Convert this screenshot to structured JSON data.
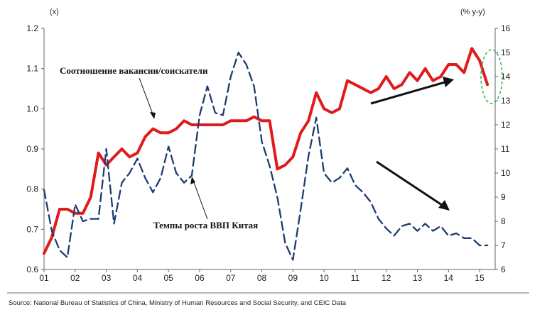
{
  "chart_data": {
    "type": "line",
    "left_axis_unit": "(x)",
    "right_axis_unit": "(% y-y)",
    "y_left_range": [
      0.6,
      1.2
    ],
    "y_left_ticks": [
      "0.6",
      "0.7",
      "0.8",
      "0.9",
      "1.0",
      "1.1",
      "1.2"
    ],
    "y_right_range": [
      6,
      16
    ],
    "y_right_ticks": [
      "6",
      "7",
      "8",
      "9",
      "10",
      "11",
      "12",
      "13",
      "14",
      "15",
      "16"
    ],
    "x_range": [
      2001,
      2015.5
    ],
    "x_ticks": [
      "01",
      "02",
      "03",
      "04",
      "05",
      "06",
      "07",
      "08",
      "09",
      "10",
      "11",
      "12",
      "13",
      "14",
      "15"
    ],
    "grid": false,
    "series": [
      {
        "name": "Соотношение вакансии/соискатели",
        "axis": "left",
        "color": "#e01b1b",
        "style": "solid",
        "x": [
          2001.0,
          2001.25,
          2001.5,
          2001.75,
          2002.0,
          2002.25,
          2002.5,
          2002.75,
          2003.0,
          2003.25,
          2003.5,
          2003.75,
          2004.0,
          2004.25,
          2004.5,
          2004.75,
          2005.0,
          2005.25,
          2005.5,
          2005.75,
          2006.0,
          2006.25,
          2006.5,
          2006.75,
          2007.0,
          2007.25,
          2007.5,
          2007.75,
          2008.0,
          2008.25,
          2008.5,
          2008.75,
          2009.0,
          2009.25,
          2009.5,
          2009.75,
          2010.0,
          2010.25,
          2010.5,
          2010.75,
          2011.0,
          2011.25,
          2011.5,
          2011.75,
          2012.0,
          2012.25,
          2012.5,
          2012.75,
          2013.0,
          2013.25,
          2013.5,
          2013.75,
          2014.0,
          2014.25,
          2014.5,
          2014.75,
          2015.0,
          2015.25
        ],
        "values": [
          0.64,
          0.68,
          0.75,
          0.75,
          0.74,
          0.74,
          0.78,
          0.89,
          0.86,
          0.88,
          0.9,
          0.88,
          0.89,
          0.93,
          0.95,
          0.94,
          0.94,
          0.95,
          0.97,
          0.96,
          0.96,
          0.96,
          0.96,
          0.96,
          0.97,
          0.97,
          0.97,
          0.98,
          0.97,
          0.97,
          0.85,
          0.86,
          0.88,
          0.94,
          0.97,
          1.04,
          1.0,
          0.99,
          1.0,
          1.07,
          1.06,
          1.05,
          1.04,
          1.05,
          1.08,
          1.05,
          1.06,
          1.09,
          1.07,
          1.1,
          1.07,
          1.08,
          1.11,
          1.11,
          1.09,
          1.15,
          1.12,
          1.06
        ]
      },
      {
        "name": "Темпы роста ВВП Китая",
        "axis": "right",
        "color": "#1f3b73",
        "style": "dashed",
        "x": [
          2001.0,
          2001.25,
          2001.5,
          2001.75,
          2002.0,
          2002.25,
          2002.5,
          2002.75,
          2003.0,
          2003.25,
          2003.5,
          2003.75,
          2004.0,
          2004.25,
          2004.5,
          2004.75,
          2005.0,
          2005.25,
          2005.5,
          2005.75,
          2006.0,
          2006.25,
          2006.5,
          2006.75,
          2007.0,
          2007.25,
          2007.5,
          2007.75,
          2008.0,
          2008.25,
          2008.5,
          2008.75,
          2009.0,
          2009.25,
          2009.5,
          2009.75,
          2010.0,
          2010.25,
          2010.5,
          2010.75,
          2011.0,
          2011.25,
          2011.5,
          2011.75,
          2012.0,
          2012.25,
          2012.5,
          2012.75,
          2013.0,
          2013.25,
          2013.5,
          2013.75,
          2014.0,
          2014.25,
          2014.5,
          2014.75,
          2015.0,
          2015.25
        ],
        "values": [
          9.3,
          7.6,
          6.8,
          6.5,
          8.7,
          8.0,
          8.1,
          8.1,
          11.0,
          7.9,
          9.6,
          10.0,
          10.6,
          9.8,
          9.2,
          9.8,
          11.1,
          10.0,
          9.6,
          9.9,
          12.4,
          13.6,
          12.5,
          12.4,
          14.0,
          15.0,
          14.5,
          13.6,
          11.3,
          10.3,
          9.0,
          7.1,
          6.4,
          8.5,
          10.7,
          12.3,
          10.0,
          9.6,
          9.8,
          10.2,
          9.5,
          9.2,
          8.8,
          8.1,
          7.7,
          7.4,
          7.8,
          7.9,
          7.6,
          7.9,
          7.6,
          7.8,
          7.4,
          7.5,
          7.3,
          7.3,
          7.0,
          7.0
        ]
      }
    ]
  },
  "annotations": {
    "ratio_label": "Соотношение вакансии/соискатели",
    "gdp_label": "Темпы роста ВВП Китая"
  },
  "source_note": "Source: National Bureau of Statistics of China, Ministry of Human Resources and Social Security, and CEIC Data"
}
